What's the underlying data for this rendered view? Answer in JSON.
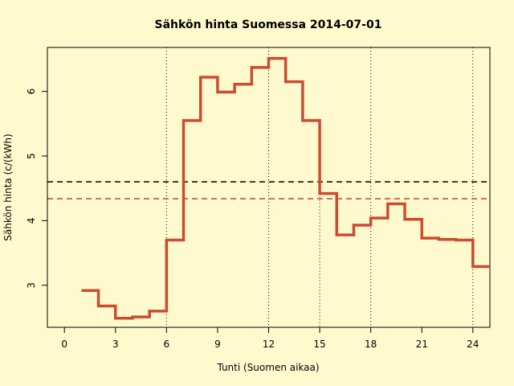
{
  "chart_data": {
    "type": "line",
    "step": true,
    "title": "Sähkön hinta Suomessa 2014-07-01",
    "xlabel": "Tunti (Suomen aikaa)",
    "ylabel": "Sähkön hinta (c/(kWh)",
    "xlim": [
      -1,
      25
    ],
    "ylim": [
      2.35,
      6.68
    ],
    "x_ticks": [
      0,
      3,
      6,
      9,
      12,
      15,
      18,
      21,
      24
    ],
    "y_ticks": [
      3,
      4,
      5,
      6
    ],
    "vertical_gridlines": [
      6,
      12,
      18,
      24
    ],
    "vertical_gridlines_short": [
      15
    ],
    "background_color": "#fffacd",
    "series": [
      {
        "color": "#cd4b32",
        "x": [
          1,
          2,
          3,
          4,
          5,
          6,
          7,
          8,
          9,
          10,
          11,
          12,
          13,
          14,
          15,
          16,
          17,
          18,
          19,
          20,
          21,
          22,
          23,
          24
        ],
        "values": [
          2.92,
          2.68,
          2.49,
          2.51,
          2.6,
          3.7,
          5.55,
          6.22,
          5.99,
          6.11,
          6.37,
          6.51,
          6.15,
          5.55,
          4.42,
          3.78,
          3.93,
          4.04,
          4.26,
          4.02,
          3.73,
          3.71,
          3.7,
          3.29
        ]
      }
    ],
    "reference_lines": [
      {
        "y": 4.6,
        "color": "#000000",
        "style": "dashed"
      },
      {
        "y": 4.34,
        "color": "#cd3f2e",
        "style": "dashed"
      }
    ]
  }
}
